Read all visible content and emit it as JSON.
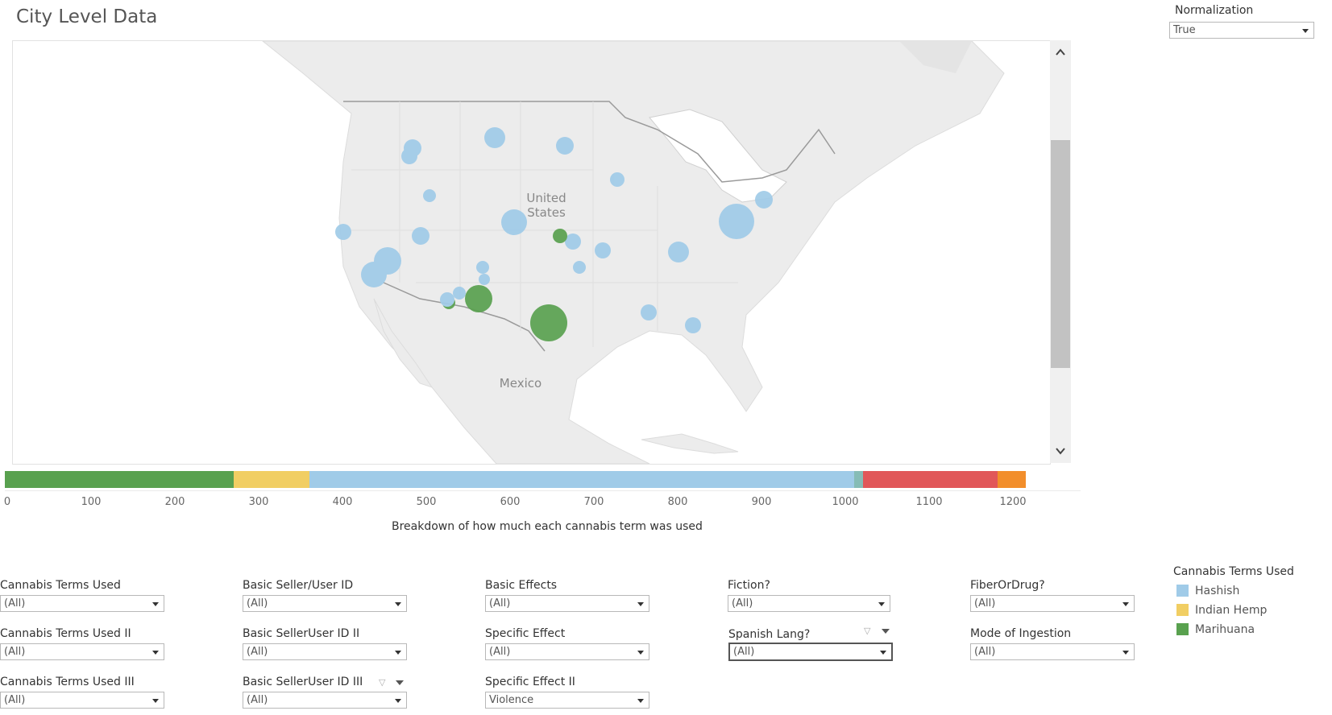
{
  "title": "City Level Data",
  "normalization": {
    "label": "Normalization",
    "value": "True"
  },
  "map_labels": {
    "us_line1": "United",
    "us_line2": "States",
    "mexico": "Mexico"
  },
  "colors": {
    "hashish": "#a0cbe8",
    "indian_hemp": "#f1ce63",
    "marihuana": "#59a14f",
    "red": "#e15759",
    "orange": "#f28e2b",
    "teal": "#86bcb6"
  },
  "bar": {
    "title": "Breakdown of how much each cannabis term was used",
    "ticks": [
      "0",
      "100",
      "200",
      "300",
      "400",
      "500",
      "600",
      "700",
      "800",
      "900",
      "1000",
      "1100",
      "1200"
    ],
    "segments": [
      {
        "name": "Marihuana",
        "start": 0,
        "end": 273,
        "color": "#59a14f"
      },
      {
        "name": "Indian Hemp",
        "start": 273,
        "end": 363,
        "color": "#f1ce63"
      },
      {
        "name": "Hashish",
        "start": 363,
        "end": 1013,
        "color": "#a0cbe8"
      },
      {
        "name": "teal",
        "start": 1013,
        "end": 1024,
        "color": "#86bcb6"
      },
      {
        "name": "red",
        "start": 1024,
        "end": 1185,
        "color": "#e15759"
      },
      {
        "name": "orange",
        "start": 1185,
        "end": 1218,
        "color": "#f28e2b"
      }
    ]
  },
  "filters": {
    "c1": [
      {
        "label": "Cannabis Terms Used",
        "value": "(All)"
      },
      {
        "label": "Cannabis Terms Used II",
        "value": "(All)"
      },
      {
        "label": "Cannabis Terms Used III",
        "value": "(All)"
      }
    ],
    "c2": [
      {
        "label": "Basic Seller/User ID",
        "value": "(All)"
      },
      {
        "label": "Basic SellerUser ID II",
        "value": "(All)"
      },
      {
        "label": "Basic SellerUser ID III",
        "value": "(All)"
      }
    ],
    "c3": [
      {
        "label": "Basic Effects",
        "value": "(All)"
      },
      {
        "label": "Specific Effect",
        "value": "(All)"
      },
      {
        "label": "Specific Effect II",
        "value": "Violence"
      }
    ],
    "c4": [
      {
        "label": "Fiction?",
        "value": "(All)"
      },
      {
        "label": "Spanish Lang?",
        "value": "(All)"
      }
    ],
    "c5": [
      {
        "label": "FiberOrDrug?",
        "value": "(All)"
      },
      {
        "label": "Mode of Ingestion",
        "value": "(All)"
      }
    ]
  },
  "legend": {
    "title": "Cannabis Terms Used",
    "items": [
      {
        "label": "Hashish",
        "color": "#a0cbe8"
      },
      {
        "label": "Indian Hemp",
        "color": "#f1ce63"
      },
      {
        "label": "Marihuana",
        "color": "#59a14f"
      }
    ]
  }
}
